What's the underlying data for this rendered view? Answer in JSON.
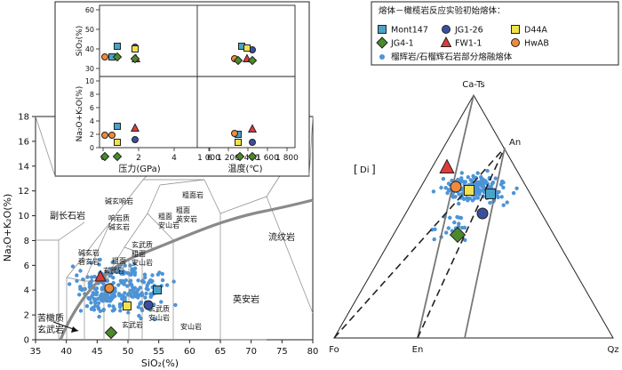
{
  "legend": {
    "title": "熔体－橄榄岩反应实验初始熔体：",
    "items": [
      {
        "label": "Mont147",
        "color": "#4aa3c8",
        "shape": "square"
      },
      {
        "label": "JG1-26",
        "color": "#3a4fa0",
        "shape": "circle"
      },
      {
        "label": "D44A",
        "color": "#f2e24a",
        "shape": "square"
      },
      {
        "label": "JG4-1",
        "color": "#4a8a2a",
        "shape": "diamond"
      },
      {
        "label": "FW1-1",
        "color": "#e03a3a",
        "shape": "triangle"
      },
      {
        "label": "HwAB",
        "color": "#f08a3a",
        "shape": "circle"
      }
    ],
    "dots_label": "榴辉岩/石榴辉石岩部分熔融熔体",
    "dot_color": "#4d94d6"
  },
  "tas": {
    "xlabel": "SiO₂(%)",
    "ylabel": "Na₂O+K₂O(%)",
    "xticks": [
      "35",
      "40",
      "45",
      "50",
      "55",
      "60",
      "65",
      "70",
      "75",
      "80"
    ],
    "yticks": [
      "0",
      "2",
      "4",
      "6",
      "8",
      "10",
      "12",
      "14",
      "16",
      "18"
    ],
    "fields": {
      "foidite": "副长石岩",
      "phonolite": "碱玄响岩",
      "tephriphonolite": "响岩质碱玄岩",
      "trachyte": "粗面岩",
      "trachydacite": "粗面英安岩",
      "trachyandesite": "粗面安山岩",
      "basaltic_trachyandesite": "玄武质粗面安山岩",
      "basanite": "碱玄岩碧玄岩",
      "trachybasalt": "粗面玄武岩",
      "rhyolite": "流纹岩",
      "dacite": "英安岩",
      "andesite": "安山岩",
      "basaltic_andesite": "玄武质安山岩",
      "basalt": "玄武岩",
      "picrobasalt": "苦橄质玄武岩"
    }
  },
  "inset": {
    "y_top": "SiO₂(%)",
    "y_bottom": "Na₂O+K₂O(%)",
    "y_top_ticks": [
      "30",
      "40",
      "50",
      "60"
    ],
    "y_bottom_ticks": [
      "0",
      "2",
      "4",
      "6",
      "8",
      "10"
    ],
    "x_left_label": "压力(GPa)",
    "x_left_ticks": [
      "0",
      "2",
      "4",
      "6"
    ],
    "x_right_label": "温度(℃)",
    "x_right_ticks": [
      "1 000",
      "1 200",
      "1 400",
      "1 600",
      "1 800"
    ]
  },
  "ternary": {
    "top": "Ca-Ts",
    "left": "Fo",
    "right": "Qz",
    "bottom_mid": "En",
    "an": "An",
    "di": "Di"
  }
}
